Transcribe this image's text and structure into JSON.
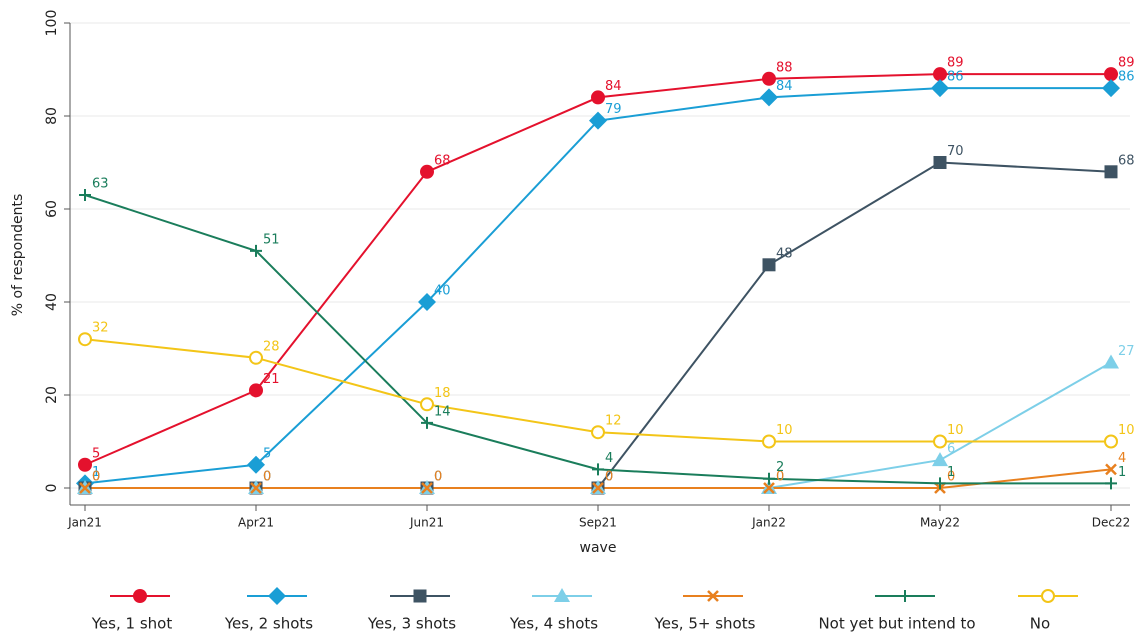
{
  "chart_data": {
    "type": "line",
    "categories": [
      "Jan21",
      "Apr21",
      "Jun21",
      "Sep21",
      "Jan22",
      "May22",
      "Dec22"
    ],
    "x_label": "wave",
    "y_label": "% of respondents",
    "ylim": [
      0,
      100
    ],
    "yticks": [
      0,
      20,
      40,
      60,
      80,
      100
    ],
    "grid": true,
    "legend": "bottom",
    "series": [
      {
        "name": "Yes, 1 shot",
        "color": "#e4112d",
        "marker": "circle",
        "values": [
          5,
          21,
          68,
          84,
          88,
          89,
          89
        ]
      },
      {
        "name": "Yes, 2 shots",
        "color": "#1a9ed5",
        "marker": "diamond",
        "values": [
          1,
          5,
          40,
          79,
          84,
          86,
          86
        ]
      },
      {
        "name": "Yes, 3 shots",
        "color": "#3e5363",
        "marker": "square",
        "values": [
          0,
          0,
          0,
          0,
          48,
          70,
          68
        ]
      },
      {
        "name": "Yes, 4 shots",
        "color": "#7dcfe8",
        "marker": "triangle",
        "values": [
          0,
          0,
          0,
          0,
          0,
          6,
          27
        ]
      },
      {
        "name": "Yes, 5+ shots",
        "color": "#e8801f",
        "marker": "x",
        "values": [
          0,
          0,
          0,
          0,
          0,
          0,
          4
        ]
      },
      {
        "name": "Not yet but intend to",
        "color": "#1a7d5b",
        "marker": "plus",
        "values": [
          63,
          51,
          14,
          4,
          2,
          1,
          1
        ]
      },
      {
        "name": "No",
        "color": "#f3c518",
        "marker": "hollow-circle",
        "values": [
          32,
          28,
          18,
          12,
          10,
          10,
          10
        ]
      }
    ]
  }
}
